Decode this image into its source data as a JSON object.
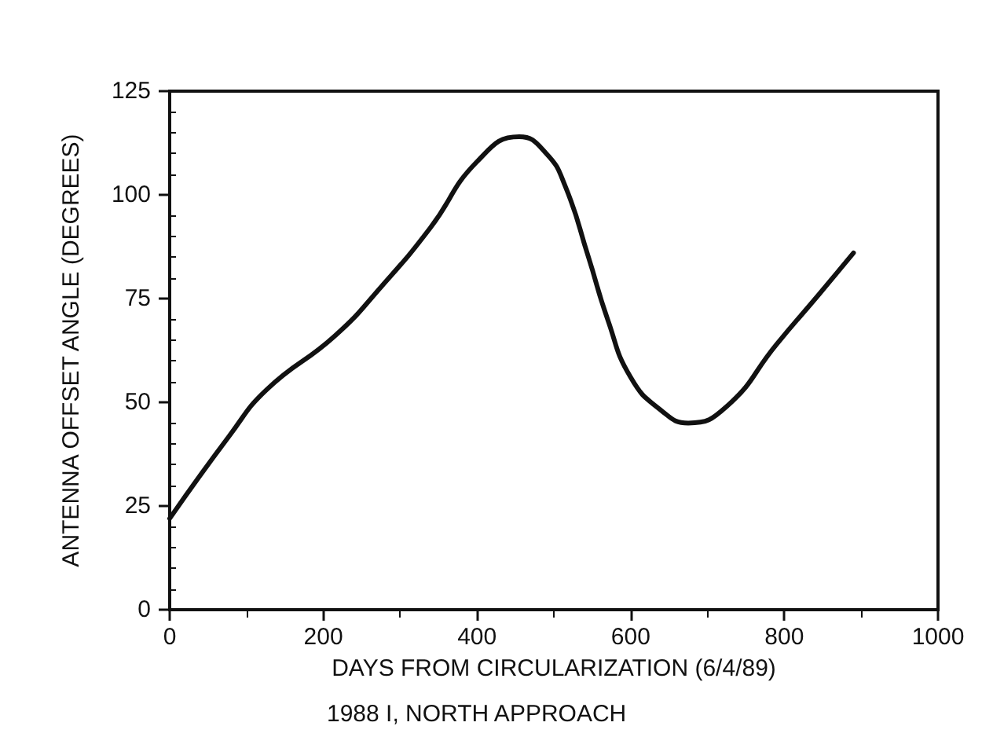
{
  "chart_data": {
    "type": "line",
    "xlabel": "DAYS FROM CIRCULARIZATION (6/4/89)",
    "ylabel": "ANTENNA OFFSET ANGLE (DEGREES)",
    "annotations": [
      "1988 I, NORTH APPROACH"
    ],
    "x": [
      0,
      78,
      126,
      215,
      276,
      339,
      400,
      455,
      490,
      515,
      545,
      570,
      600,
      640,
      675,
      725,
      790,
      845,
      890
    ],
    "series": [
      {
        "color": "#111111",
        "values": [
          22,
          42,
          53,
          66,
          78,
          92,
          108,
          114,
          110,
          102,
          85,
          70,
          56,
          48,
          45,
          49,
          64,
          76,
          86
        ]
      }
    ],
    "xlim": [
      0,
      1000
    ],
    "xticks": [
      0,
      200,
      400,
      600,
      800,
      1000
    ],
    "ylim": [
      0,
      125
    ],
    "yticks": [
      0,
      25,
      50,
      75,
      100,
      125
    ],
    "grid": false,
    "marker": "none",
    "line_style": "solid"
  }
}
